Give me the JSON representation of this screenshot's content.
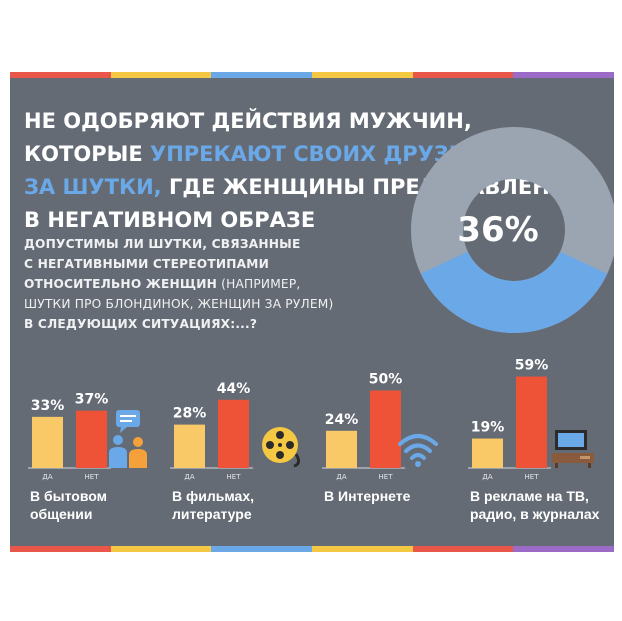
{
  "stripe_colors": [
    "#e8574a",
    "#f4c843",
    "#6aa8e8",
    "#f4c843",
    "#e8574a",
    "#9b6bc7"
  ],
  "headline": {
    "line1": "НЕ ОДОБРЯЮТ ДЕЙСТВИЯ МУЖЧИН,",
    "line2_a": "КОТОРЫЕ ",
    "line2_b": "УПРЕКАЮТ СВОИХ ДРУЗЕЙ",
    "line3_a": "ЗА ШУТКИ,",
    "line3_b": " ГДЕ ЖЕНЩИНЫ ПРЕДСТАВЛЕНЫ",
    "line4": "В НЕГАТИВНОМ ОБРАЗЕ"
  },
  "question": {
    "bold_1": "ДОПУСТИМЫ ЛИ ШУТКИ, СВЯЗАННЫЕ",
    "bold_2": "С НЕГАТИВНЫМИ СТЕРЕОТИПАМИ",
    "bold_3": "ОТНОСИТЕЛЬНО ЖЕНЩИН",
    "normal_3": " (НАПРИМЕР,",
    "normal_4": "ШУТКИ ПРО БЛОНДИНОК, ЖЕНЩИН ЗА РУЛЕМ)",
    "bold_5": "В СЛЕДУЮЩИХ СИТУАЦИЯХ:...?"
  },
  "donut": {
    "value": 36,
    "label": "36%",
    "color_value": "#6aa8e8",
    "color_rest": "#9aa5b1",
    "hole_color": "#656b74"
  },
  "colors": {
    "yes": "#f8c966",
    "no": "#ee5337",
    "axis": "#d5d8dc",
    "tick": "#e4e6e9"
  },
  "chart_data": {
    "type": "bar",
    "categories": [
      "В бытовом общении",
      "В фильмах, литературе",
      "В Интернете",
      "В рекламе на ТВ, радио, в журналах"
    ],
    "series": [
      {
        "name": "ДА",
        "values": [
          33,
          28,
          24,
          19
        ],
        "labels": [
          "33%",
          "28%",
          "24%",
          "19%"
        ]
      },
      {
        "name": "НЕТ",
        "values": [
          37,
          44,
          50,
          59
        ],
        "labels": [
          "37%",
          "44%",
          "50%",
          "59%"
        ]
      }
    ],
    "ylim": [
      0,
      100
    ],
    "labels_split": [
      [
        "В бытовом",
        "общении"
      ],
      [
        "В фильмах,",
        "литературе"
      ],
      [
        "В Интернете"
      ],
      [
        "В рекламе на ТВ,",
        "радио, в журналах"
      ]
    ]
  },
  "icons": [
    "chat-icon",
    "film-reel-icon",
    "wifi-icon",
    "tv-icon"
  ]
}
